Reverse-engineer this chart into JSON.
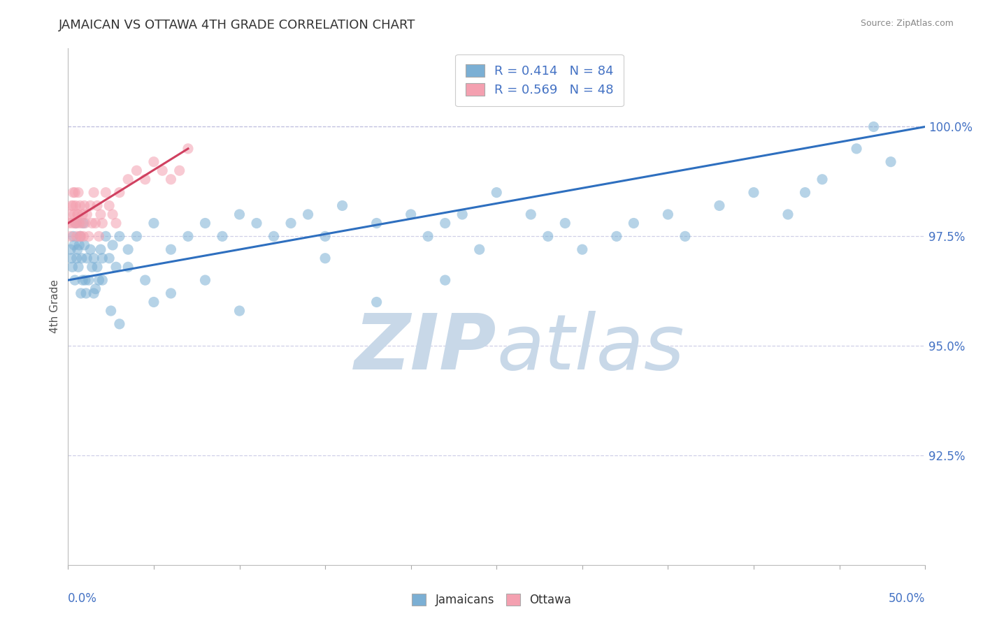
{
  "title": "JAMAICAN VS OTTAWA 4TH GRADE CORRELATION CHART",
  "source": "Source: ZipAtlas.com",
  "ylabel": "4th Grade",
  "xlim": [
    0.0,
    50.0
  ],
  "ylim": [
    90.0,
    101.8
  ],
  "ytick_vals": [
    92.5,
    95.0,
    97.5,
    100.0
  ],
  "ytick_labels": [
    "92.5%",
    "95.0%",
    "97.5%",
    "100.0%"
  ],
  "legend_blue_r": "R = 0.414",
  "legend_blue_n": "N = 84",
  "legend_pink_r": "R = 0.569",
  "legend_pink_n": "N = 48",
  "blue_color": "#7BAFD4",
  "pink_color": "#F4A0B0",
  "blue_line_color": "#2E6FBF",
  "pink_line_color": "#D04060",
  "watermark_color": "#C8D8E8",
  "title_color": "#333333",
  "source_color": "#888888",
  "label_color": "#555555",
  "tick_color": "#4472C4",
  "grid_color": "#BBBBDD",
  "blue_trend_x0": 0.0,
  "blue_trend_y0": 96.5,
  "blue_trend_x1": 50.0,
  "blue_trend_y1": 100.0,
  "pink_trend_x0": 0.0,
  "pink_trend_y0": 97.8,
  "pink_trend_x1": 7.0,
  "pink_trend_y1": 99.5,
  "blue_x": [
    0.15,
    0.2,
    0.25,
    0.3,
    0.35,
    0.4,
    0.45,
    0.5,
    0.55,
    0.6,
    0.65,
    0.7,
    0.75,
    0.8,
    0.85,
    0.9,
    0.95,
    1.0,
    1.05,
    1.1,
    1.2,
    1.3,
    1.4,
    1.5,
    1.6,
    1.7,
    1.8,
    1.9,
    2.0,
    2.2,
    2.4,
    2.6,
    2.8,
    3.0,
    3.5,
    4.0,
    5.0,
    6.0,
    7.0,
    8.0,
    9.0,
    10.0,
    11.0,
    12.0,
    13.0,
    14.0,
    15.0,
    16.0,
    18.0,
    20.0,
    21.0,
    22.0,
    23.0,
    24.0,
    25.0,
    27.0,
    28.0,
    29.0,
    30.0,
    32.0,
    33.0,
    35.0,
    36.0,
    38.0,
    40.0,
    42.0,
    43.0,
    44.0,
    46.0,
    47.0,
    48.0,
    22.0,
    18.0,
    15.0,
    10.0,
    8.0,
    6.0,
    5.0,
    4.5,
    3.5,
    3.0,
    2.5,
    2.0,
    1.5
  ],
  "blue_y": [
    97.2,
    97.0,
    96.8,
    97.5,
    97.3,
    96.5,
    97.8,
    97.0,
    97.2,
    96.8,
    97.3,
    97.5,
    96.2,
    97.0,
    96.5,
    97.8,
    97.3,
    96.5,
    96.2,
    97.0,
    96.5,
    97.2,
    96.8,
    97.0,
    96.3,
    96.8,
    96.5,
    97.2,
    97.0,
    97.5,
    97.0,
    97.3,
    96.8,
    97.5,
    97.2,
    97.5,
    97.8,
    97.2,
    97.5,
    97.8,
    97.5,
    98.0,
    97.8,
    97.5,
    97.8,
    98.0,
    97.5,
    98.2,
    97.8,
    98.0,
    97.5,
    97.8,
    98.0,
    97.2,
    98.5,
    98.0,
    97.5,
    97.8,
    97.2,
    97.5,
    97.8,
    98.0,
    97.5,
    98.2,
    98.5,
    98.0,
    98.5,
    98.8,
    99.5,
    100.0,
    99.2,
    96.5,
    96.0,
    97.0,
    95.8,
    96.5,
    96.2,
    96.0,
    96.5,
    96.8,
    95.5,
    95.8,
    96.5,
    96.2
  ],
  "pink_x": [
    0.05,
    0.1,
    0.15,
    0.2,
    0.25,
    0.3,
    0.35,
    0.4,
    0.45,
    0.5,
    0.55,
    0.6,
    0.65,
    0.7,
    0.75,
    0.8,
    0.85,
    0.9,
    0.95,
    1.0,
    1.1,
    1.2,
    1.3,
    1.4,
    1.5,
    1.6,
    1.7,
    1.8,
    1.9,
    2.0,
    2.2,
    2.4,
    2.6,
    2.8,
    3.0,
    3.5,
    4.0,
    4.5,
    5.0,
    5.5,
    6.0,
    6.5,
    7.0,
    0.3,
    0.4,
    0.5,
    0.6,
    0.7
  ],
  "pink_y": [
    97.8,
    98.0,
    97.5,
    98.2,
    97.8,
    98.5,
    98.0,
    97.8,
    98.2,
    97.5,
    98.0,
    98.5,
    97.8,
    98.2,
    97.5,
    97.8,
    98.0,
    97.5,
    98.2,
    97.8,
    98.0,
    97.5,
    98.2,
    97.8,
    98.5,
    97.8,
    98.2,
    97.5,
    98.0,
    97.8,
    98.5,
    98.2,
    98.0,
    97.8,
    98.5,
    98.8,
    99.0,
    98.8,
    99.2,
    99.0,
    98.8,
    99.0,
    99.5,
    98.2,
    98.5,
    97.8,
    98.0,
    97.5
  ]
}
